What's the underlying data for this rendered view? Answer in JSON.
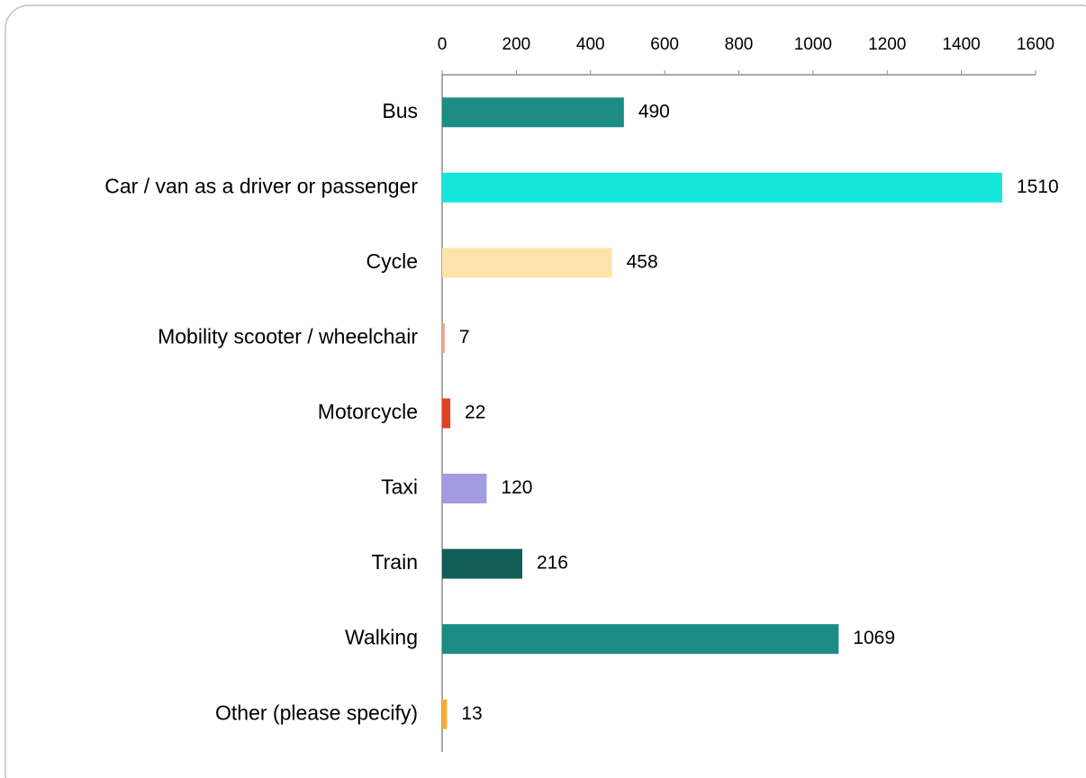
{
  "chart_data": {
    "type": "bar",
    "orientation": "horizontal",
    "categories": [
      "Bus",
      "Car / van as a driver or passenger",
      "Cycle",
      "Mobility scooter / wheelchair",
      "Motorcycle",
      "Taxi",
      "Train",
      "Walking",
      "Other (please specify)"
    ],
    "values": [
      490,
      1510,
      458,
      7,
      22,
      120,
      216,
      1069,
      13
    ],
    "colors": [
      "#1b8c83",
      "#14e6dc",
      "#fde3a9",
      "#f2a391",
      "#e2431f",
      "#a29be0",
      "#105d57",
      "#1b8c83",
      "#f4ae32"
    ],
    "xlim": [
      0,
      1600
    ],
    "xticks": [
      0,
      200,
      400,
      600,
      800,
      1000,
      1200,
      1400,
      1600
    ]
  }
}
